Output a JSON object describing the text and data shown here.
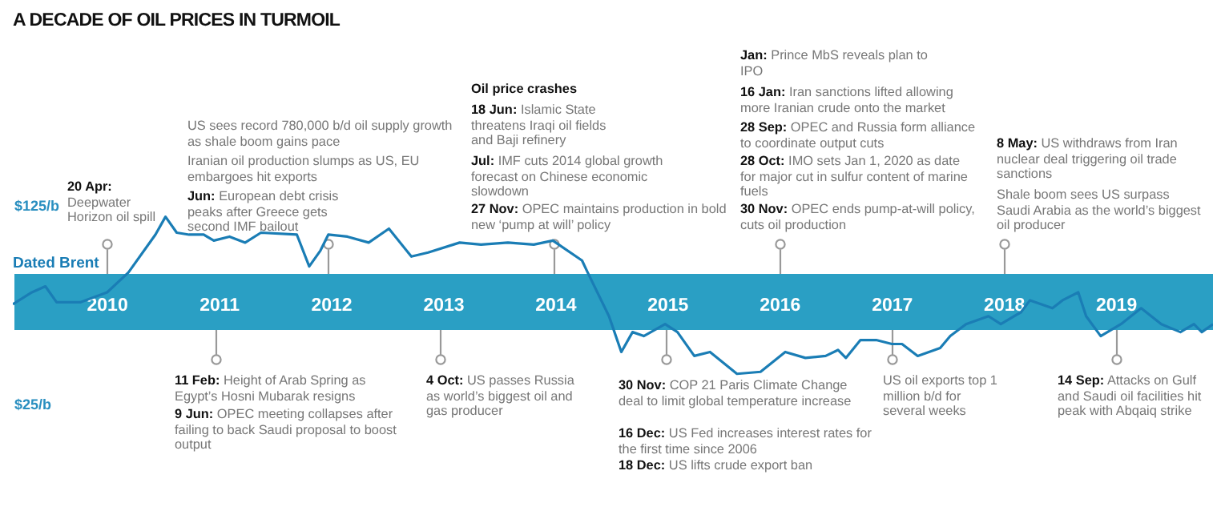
{
  "chart_data": {
    "type": "line",
    "title": "A DECADE OF OIL PRICES IN TURMOIL",
    "annotations": [
      "20 Apr: Deepwater Horizon oil spill",
      "US sees record 780,000 b/d oil supply growth as shale boom gains pace",
      "Iranian oil production slumps as US, EU embargoes hit exports",
      "Jun: European debt crisis peaks after Greece gets second IMF bailout",
      "Oil price crashes",
      "18 Jun: Islamic State threatens Iraqi oil fields and Baji refinery",
      "Jul: IMF cuts 2014 global growth forecast on Chinese economic slowdown",
      "27 Nov: OPEC maintains production in bold new ‘pump at will’ policy",
      "Jan: Prince MbS reveals plan to IPO",
      "16 Jan: Iran sanctions lifted allowing more Iranian crude onto the market",
      "28 Sep: OPEC and Russia form alliance to coordinate output cuts",
      "28 Oct: IMO sets Jan 1, 2020 as date for major cut in sulfur content of marine fuels",
      "30 Nov: OPEC ends pump-at-will policy, cuts oil production",
      "8 May: US withdraws from Iran nuclear deal triggering oil trade sanctions",
      "Shale boom sees US surpass Saudi Arabia as the world’s biggest oil producer",
      "11 Feb: Height of Arab Spring as Egypt’s Hosni Mubarak resigns",
      "9 Jun: OPEC meeting collapses after failing to back Saudi proposal to boost output",
      "4 Oct: US passes Russia as world’s biggest oil and gas producer",
      "30 Nov: COP 21 Paris Climate Change deal to limit global temperature increase",
      "16 Dec: US Fed increases interest rates for the first time since 2006",
      "18 Dec: US lifts crude export ban",
      "US oil exports top 1 million b/d for several weeks",
      "14 Sep: Attacks on Gulf and Saudi oil facilities hit peak with Abqaiq strike"
    ],
    "x": [
      2009.17,
      2009.34,
      2009.46,
      2009.56,
      2009.77,
      2010.01,
      2010.2,
      2010.44,
      2010.53,
      2010.63,
      2010.74,
      2010.87,
      2010.96,
      2011.1,
      2011.24,
      2011.38,
      2011.7,
      2011.81,
      2011.91,
      2011.98,
      2012.15,
      2012.34,
      2012.52,
      2012.72,
      2012.87,
      2013.15,
      2013.34,
      2013.58,
      2013.81,
      2013.98,
      2014.24,
      2014.29,
      2014.48,
      2014.59,
      2014.69,
      2014.79,
      2014.98,
      2015.09,
      2015.24,
      2015.38,
      2015.62,
      2015.83,
      2016.05,
      2016.23,
      2016.41,
      2016.52,
      2016.59,
      2016.72,
      2016.86,
      2017.0,
      2017.09,
      2017.23,
      2017.43,
      2017.52,
      2017.66,
      2017.86,
      2017.97,
      2018.15,
      2018.23,
      2018.43,
      2018.52,
      2018.66,
      2018.73,
      2018.86,
      2019.04,
      2019.22,
      2019.4,
      2019.57,
      2019.69,
      2019.76,
      2019.86
    ],
    "series": [
      {
        "name": "Dated Brent",
        "color": "#1a7db5",
        "values": [
          75,
          81,
          84,
          76,
          76,
          81,
          91,
          110,
          119,
          111,
          110,
          110,
          107,
          109,
          106,
          111,
          110,
          94,
          102,
          110,
          109,
          106,
          113,
          99,
          101,
          106,
          105,
          106,
          105,
          107,
          97,
          91,
          69,
          51,
          61,
          59,
          65,
          61,
          49,
          51,
          40,
          41,
          51,
          48,
          49,
          52,
          48,
          57,
          57,
          55,
          55,
          49,
          53,
          59,
          65,
          69,
          65,
          71,
          77,
          73,
          77,
          81,
          69,
          59,
          65,
          73,
          65,
          61,
          65,
          61,
          65
        ]
      }
    ],
    "xlim": [
      2009.17,
      2019.86
    ],
    "xticks": [
      2010,
      2011,
      2012,
      2013,
      2014,
      2015,
      2016,
      2017,
      2018,
      2019
    ],
    "ylim": [
      -33,
      228
    ],
    "yticks": [
      {
        "value": 125,
        "label": "$125/b"
      },
      {
        "value": 25,
        "label": "$25/b"
      }
    ],
    "grid": false,
    "legend": "left",
    "marker": "none"
  }
}
